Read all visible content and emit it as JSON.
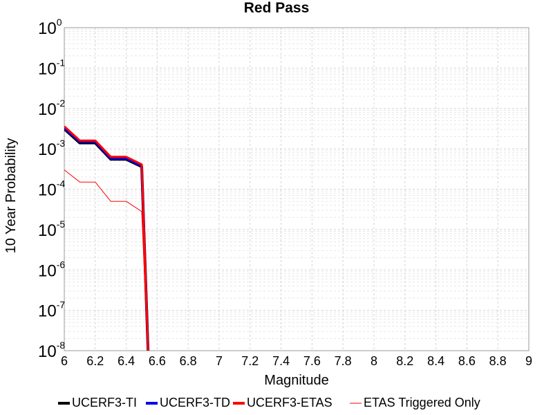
{
  "chart_data": {
    "type": "line",
    "title": "Red Pass",
    "xlabel": "Magnitude",
    "ylabel": "10 Year Probability",
    "xlim": [
      6,
      9
    ],
    "ylim": [
      1e-08,
      1
    ],
    "yscale": "log",
    "grid": true,
    "legend_position": "bottom",
    "x_ticks": [
      "6",
      "6.2",
      "6.4",
      "6.6",
      "6.8",
      "7",
      "7.2",
      "7.4",
      "7.6",
      "7.8",
      "8",
      "8.2",
      "8.4",
      "8.6",
      "8.8",
      "9"
    ],
    "y_ticks": [
      {
        "base": "10",
        "exp": "0"
      },
      {
        "base": "10",
        "exp": "-1"
      },
      {
        "base": "10",
        "exp": "-2"
      },
      {
        "base": "10",
        "exp": "-3"
      },
      {
        "base": "10",
        "exp": "-4"
      },
      {
        "base": "10",
        "exp": "-5"
      },
      {
        "base": "10",
        "exp": "-6"
      },
      {
        "base": "10",
        "exp": "-7"
      },
      {
        "base": "10",
        "exp": "-8"
      }
    ],
    "series": [
      {
        "name": "UCERF3-TI",
        "color": "#000000",
        "x": [
          6.0,
          6.1,
          6.2,
          6.3,
          6.4,
          6.5,
          6.55
        ],
        "y": [
          0.0031,
          0.0014,
          0.0014,
          0.00055,
          0.00055,
          0.00036,
          1e-09
        ]
      },
      {
        "name": "UCERF3-TD",
        "color": "#0000ee",
        "x": [
          6.0,
          6.1,
          6.2,
          6.3,
          6.4,
          6.5,
          6.55
        ],
        "y": [
          0.0033,
          0.0015,
          0.0015,
          0.00058,
          0.00058,
          0.00038,
          1e-09
        ]
      },
      {
        "name": "UCERF3-ETAS",
        "color": "#ff0000",
        "x": [
          6.0,
          6.1,
          6.2,
          6.3,
          6.4,
          6.5,
          6.55
        ],
        "y": [
          0.0036,
          0.0016,
          0.0016,
          0.00063,
          0.00063,
          0.00041,
          1e-09
        ]
      },
      {
        "name": "ETAS Triggered Only",
        "color": "#ff0000",
        "x": [
          6.0,
          6.1,
          6.2,
          6.3,
          6.4,
          6.5,
          6.55
        ],
        "y": [
          0.0003,
          0.00015,
          0.00015,
          5e-05,
          5e-05,
          2.8e-05,
          1e-09
        ]
      }
    ]
  }
}
